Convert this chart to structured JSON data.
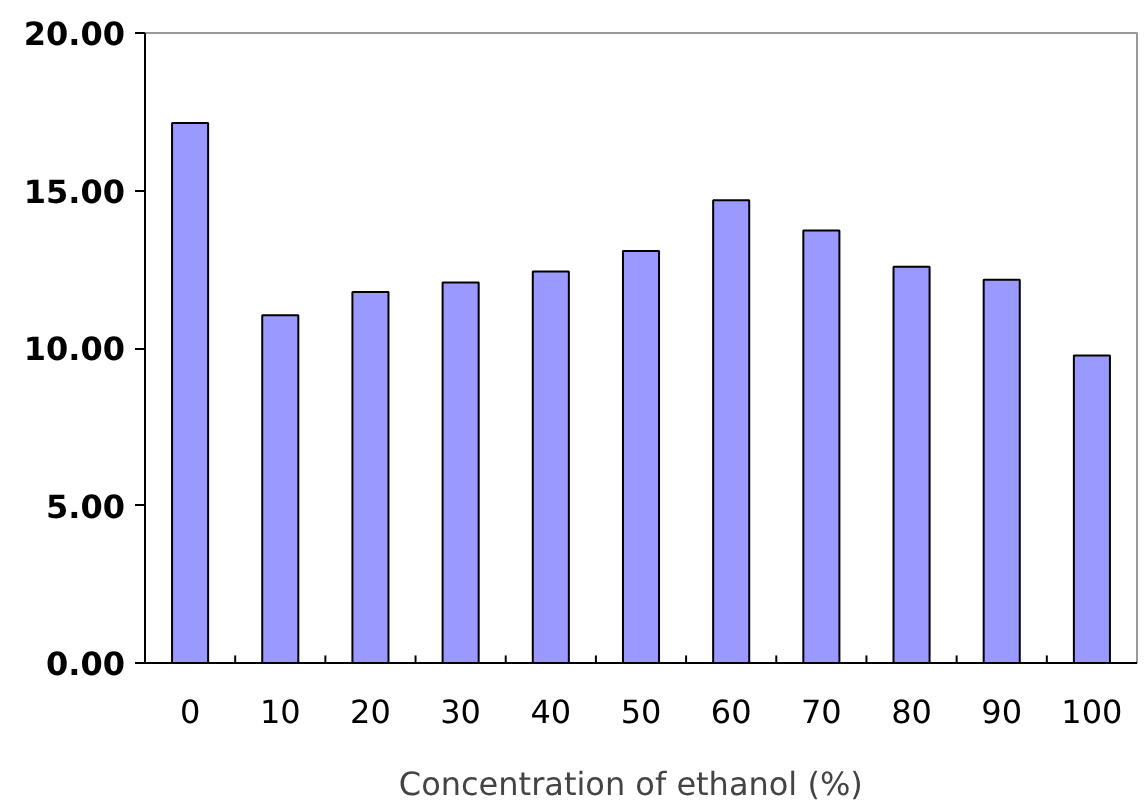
{
  "chart_data": {
    "type": "bar",
    "xlabel": "Concentration  of  ethanol (%)",
    "categories": [
      "0",
      "10",
      "20",
      "30",
      "40",
      "50",
      "60",
      "70",
      "80",
      "90",
      "100"
    ],
    "values": [
      17.14,
      11.04,
      11.78,
      12.08,
      12.43,
      13.08,
      14.69,
      13.73,
      12.58,
      12.17,
      9.76
    ],
    "color": "#9999ff",
    "ylim": [
      0,
      20
    ],
    "yticks": [
      {
        "value": 0,
        "label": "0.00"
      },
      {
        "value": 5,
        "label": "5.00"
      },
      {
        "value": 10,
        "label": "10.00"
      },
      {
        "value": 15,
        "label": "15.00"
      },
      {
        "value": 20,
        "label": "20.00"
      }
    ],
    "grid": false
  }
}
